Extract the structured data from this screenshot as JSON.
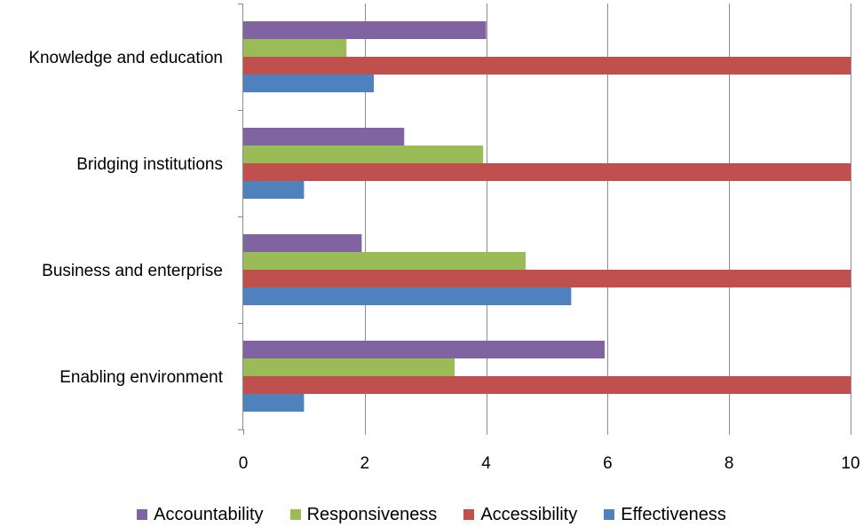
{
  "chart_data": {
    "type": "bar",
    "orientation": "horizontal",
    "categories": [
      "Enabling environment",
      "Business and enterprise",
      "Bridging institutions",
      "Knowledge and education"
    ],
    "series": [
      {
        "name": "Effectiveness",
        "color": "#4F81BD",
        "values": [
          1.0,
          5.4,
          1.0,
          2.15
        ]
      },
      {
        "name": "Accessibility",
        "color": "#C0504D",
        "values": [
          10,
          10,
          10,
          10
        ]
      },
      {
        "name": "Responsiveness",
        "color": "#9BBB59",
        "values": [
          3.48,
          4.65,
          3.95,
          1.7
        ]
      },
      {
        "name": "Accountability",
        "color": "#8064A2",
        "values": [
          5.95,
          1.95,
          2.65,
          4.0
        ]
      }
    ],
    "xlim": [
      0,
      10
    ],
    "xticks": [
      "0",
      "2",
      "4",
      "6",
      "8",
      "10"
    ],
    "grid": "vertical",
    "legend": "bottom",
    "legend_order": [
      "Accountability",
      "Responsiveness",
      "Accessibility",
      "Effectiveness"
    ],
    "title": "",
    "xlabel": "",
    "ylabel": ""
  }
}
